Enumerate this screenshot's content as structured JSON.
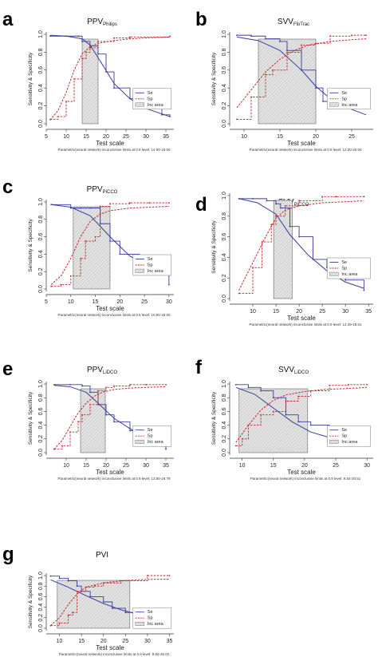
{
  "figure": {
    "type": "multi-panel ROC-style sensitivity/specificity plots"
  },
  "common": {
    "xlabel": "Test scale",
    "ylabel": "Sensitivity & Specificity",
    "legend": [
      "Se",
      "Sp",
      "Inc area"
    ],
    "colors": {
      "se": "#3a3aa0",
      "sp": "#c0282a",
      "inc_fill": "#e2e2e2"
    }
  },
  "chart_data": [
    {
      "type": "line",
      "panel": "a",
      "title_main": "PPV",
      "title_sub": "Philips",
      "xlabel": "Test scale",
      "ylabel": "Sensitivity & Specificity",
      "xlim": [
        5,
        37
      ],
      "ylim": [
        0,
        1
      ],
      "xticks": [
        5,
        10,
        15,
        20,
        25,
        30,
        35
      ],
      "yticks": [
        0.0,
        0.2,
        0.4,
        0.6,
        0.8,
        1.0
      ],
      "inconclusive_area": [
        14.0,
        18.0
      ],
      "legend": [
        "Se",
        "Sp",
        "Inc area"
      ],
      "legend_position": "right",
      "note": "Parametric(neural network) inconclusive limits at 0.9 level: 14.00-18.00",
      "series": [
        {
          "name": "Se",
          "style": "solid",
          "x": [
            6,
            10,
            14,
            16,
            18,
            22,
            26,
            30,
            34,
            36
          ],
          "y": [
            0.99,
            0.98,
            0.95,
            0.88,
            0.74,
            0.45,
            0.28,
            0.17,
            0.11,
            0.08
          ]
        },
        {
          "name": "Se",
          "style": "step",
          "x": [
            6,
            10,
            13,
            14,
            16,
            18,
            20,
            22,
            26,
            30,
            34,
            36
          ],
          "y": [
            0.98,
            0.98,
            0.98,
            0.92,
            0.87,
            0.78,
            0.58,
            0.4,
            0.28,
            0.18,
            0.1,
            0.08
          ]
        },
        {
          "name": "Sp",
          "style": "dashed",
          "x": [
            6,
            8,
            10,
            12,
            14,
            16,
            18,
            22,
            26,
            30,
            36
          ],
          "y": [
            0.04,
            0.15,
            0.35,
            0.6,
            0.78,
            0.86,
            0.9,
            0.93,
            0.95,
            0.96,
            0.97
          ]
        },
        {
          "name": "Sp",
          "style": "step",
          "x": [
            6,
            8,
            10,
            12,
            14,
            15,
            16,
            18,
            22,
            26,
            36
          ],
          "y": [
            0.05,
            0.08,
            0.25,
            0.5,
            0.73,
            0.8,
            0.85,
            0.92,
            0.96,
            0.97,
            0.98
          ]
        }
      ]
    },
    {
      "type": "line",
      "panel": "b",
      "title_main": "SVV",
      "title_sub": "FloTrac",
      "xlabel": "Test scale",
      "ylabel": "Sensitivity & Specificity",
      "xlim": [
        8,
        28
      ],
      "ylim": [
        0,
        1
      ],
      "xticks": [
        10,
        15,
        20,
        25
      ],
      "yticks": [
        0.0,
        0.2,
        0.4,
        0.6,
        0.8,
        1.0
      ],
      "inconclusive_area": [
        12.0,
        20.0
      ],
      "legend": [
        "Se",
        "Sp",
        "Inc area"
      ],
      "legend_position": "right",
      "note": "Parametric(neural network) inconclusive limits at 0.9 level: 12.00-20.00",
      "series": [
        {
          "name": "Se",
          "style": "solid",
          "x": [
            9,
            12,
            15,
            18,
            20,
            22,
            25,
            27
          ],
          "y": [
            0.97,
            0.93,
            0.82,
            0.6,
            0.42,
            0.28,
            0.16,
            0.1
          ]
        },
        {
          "name": "Se",
          "style": "step",
          "x": [
            9,
            11,
            13,
            15,
            16,
            18,
            20,
            21,
            24,
            27
          ],
          "y": [
            0.99,
            0.98,
            0.95,
            0.92,
            0.82,
            0.6,
            0.4,
            0.25,
            0.2,
            0.18
          ]
        },
        {
          "name": "Sp",
          "style": "dashed",
          "x": [
            9,
            11,
            13,
            15,
            17,
            19,
            22,
            25,
            27
          ],
          "y": [
            0.18,
            0.38,
            0.58,
            0.72,
            0.82,
            0.88,
            0.92,
            0.94,
            0.95
          ]
        },
        {
          "name": "Sp",
          "style": "step",
          "x": [
            9,
            11,
            13,
            14,
            16,
            18,
            20,
            22,
            25,
            27
          ],
          "y": [
            0.05,
            0.3,
            0.55,
            0.6,
            0.8,
            0.88,
            0.9,
            0.98,
            0.99,
            0.99
          ]
        }
      ]
    },
    {
      "type": "line",
      "panel": "c",
      "title_main": "PPV",
      "title_sub": "PiCCO",
      "xlabel": "Test scale",
      "ylabel": "Sensitivity & Specificity",
      "xlim": [
        5,
        31
      ],
      "ylim": [
        0,
        1
      ],
      "xticks": [
        5,
        10,
        15,
        20,
        25,
        30
      ],
      "yticks": [
        0.0,
        0.2,
        0.4,
        0.6,
        0.8,
        1.0
      ],
      "inconclusive_area": [
        10.5,
        18.0
      ],
      "legend": [
        "Se",
        "Sp",
        "Inc area"
      ],
      "legend_position": "right",
      "note": "Parametric(neural network) inconclusive limits at 0.9 level: 10.50-18.00",
      "series": [
        {
          "name": "Se",
          "style": "solid",
          "x": [
            6,
            10,
            14,
            18,
            22,
            26,
            30
          ],
          "y": [
            0.97,
            0.94,
            0.84,
            0.6,
            0.38,
            0.25,
            0.18
          ]
        },
        {
          "name": "Se",
          "style": "step",
          "x": [
            6,
            10,
            12,
            14,
            16,
            18,
            20,
            24,
            27,
            30
          ],
          "y": [
            0.97,
            0.93,
            0.93,
            0.93,
            0.75,
            0.55,
            0.4,
            0.3,
            0.28,
            0.05
          ]
        },
        {
          "name": "Sp",
          "style": "dashed",
          "x": [
            6,
            8,
            10,
            12,
            14,
            16,
            18,
            22,
            26,
            30
          ],
          "y": [
            0.05,
            0.15,
            0.35,
            0.6,
            0.78,
            0.86,
            0.9,
            0.93,
            0.94,
            0.95
          ]
        },
        {
          "name": "Sp",
          "style": "step",
          "x": [
            6,
            8,
            10,
            12,
            13,
            15,
            16,
            18,
            22,
            26,
            30
          ],
          "y": [
            0.03,
            0.05,
            0.15,
            0.35,
            0.55,
            0.6,
            0.95,
            0.98,
            0.99,
            0.99,
            0.99
          ]
        }
      ]
    },
    {
      "type": "line",
      "panel": "d",
      "title_main": "SVV",
      "title_sub": "PiCCO",
      "xlabel": "Test scale",
      "ylabel": "Sensitivity & Specificity",
      "xlim": [
        5,
        36
      ],
      "ylim": [
        0,
        1
      ],
      "xticks": [
        10,
        15,
        20,
        25,
        30,
        35
      ],
      "yticks": [
        0.0,
        0.2,
        0.4,
        0.6,
        0.8,
        1.0
      ],
      "inconclusive_area": [
        14.5,
        18.5
      ],
      "legend": [
        "Se",
        "Sp",
        "Inc area"
      ],
      "legend_position": "right",
      "note": "Parametric(neural network) inconclusive limits at 0.9 level: 14.49-18.51",
      "series": [
        {
          "name": "Se",
          "style": "solid",
          "x": [
            7,
            11,
            15,
            18,
            22,
            26,
            30,
            34
          ],
          "y": [
            0.97,
            0.93,
            0.82,
            0.62,
            0.42,
            0.27,
            0.16,
            0.1
          ]
        },
        {
          "name": "Se",
          "style": "step",
          "x": [
            7,
            10,
            13,
            15,
            16,
            18,
            20,
            23,
            26,
            30,
            34
          ],
          "y": [
            0.97,
            0.97,
            0.95,
            0.92,
            0.88,
            0.7,
            0.6,
            0.38,
            0.3,
            0.18,
            0.08
          ]
        },
        {
          "name": "Sp",
          "style": "dashed",
          "x": [
            7,
            10,
            13,
            15,
            17,
            20,
            25,
            30,
            34
          ],
          "y": [
            0.08,
            0.35,
            0.62,
            0.78,
            0.86,
            0.9,
            0.93,
            0.94,
            0.95
          ]
        },
        {
          "name": "Sp",
          "style": "step",
          "x": [
            7,
            10,
            12,
            14,
            15,
            17,
            20,
            25,
            28,
            34
          ],
          "y": [
            0.05,
            0.3,
            0.55,
            0.72,
            0.8,
            0.9,
            0.95,
            0.99,
            0.99,
            0.99
          ]
        }
      ]
    },
    {
      "type": "line",
      "panel": "e",
      "title_main": "PPV",
      "title_sub": "LiDCO",
      "xlabel": "Test scale",
      "ylabel": "Sensitivity & Specificity",
      "xlim": [
        5,
        37
      ],
      "ylim": [
        0,
        1
      ],
      "xticks": [
        10,
        15,
        20,
        25,
        30,
        35
      ],
      "yticks": [
        0.0,
        0.2,
        0.4,
        0.6,
        0.8,
        1.0
      ],
      "inconclusive_area": [
        13.6,
        19.8
      ],
      "legend": [
        "Se",
        "Sp",
        "Inc area"
      ],
      "legend_position": "right",
      "note": "Parametric(neural network) inconclusive limits at 0.9 level: 13.56-19.79",
      "series": [
        {
          "name": "Se",
          "style": "solid",
          "x": [
            7,
            11,
            15,
            18,
            22,
            26,
            30,
            35
          ],
          "y": [
            0.98,
            0.96,
            0.88,
            0.72,
            0.5,
            0.35,
            0.22,
            0.1
          ]
        },
        {
          "name": "Se",
          "style": "step",
          "x": [
            7,
            11,
            14,
            16,
            18,
            20,
            22,
            26,
            30,
            33,
            35
          ],
          "y": [
            0.99,
            0.99,
            0.97,
            0.88,
            0.7,
            0.55,
            0.45,
            0.32,
            0.25,
            0.15,
            0.05
          ]
        },
        {
          "name": "Sp",
          "style": "dashed",
          "x": [
            7,
            9,
            11,
            13,
            15,
            17,
            19,
            22,
            26,
            30,
            35
          ],
          "y": [
            0.05,
            0.18,
            0.38,
            0.58,
            0.72,
            0.82,
            0.88,
            0.92,
            0.94,
            0.95,
            0.96
          ]
        },
        {
          "name": "Sp",
          "style": "step",
          "x": [
            7,
            9,
            11,
            13,
            14,
            16,
            18,
            20,
            22,
            26,
            30,
            35
          ],
          "y": [
            0.05,
            0.1,
            0.3,
            0.45,
            0.55,
            0.7,
            0.9,
            0.95,
            0.97,
            0.99,
            0.99,
            0.99
          ]
        }
      ]
    },
    {
      "type": "line",
      "panel": "f",
      "title_main": "SVV",
      "title_sub": "LiDCO",
      "xlabel": "Test scale",
      "ylabel": "Sensitivity & Specificity",
      "xlim": [
        8,
        31
      ],
      "ylim": [
        0,
        1
      ],
      "xticks": [
        10,
        15,
        20,
        25,
        30
      ],
      "yticks": [
        0.0,
        0.2,
        0.4,
        0.6,
        0.8,
        1.0
      ],
      "inconclusive_area": [
        9.5,
        20.5
      ],
      "legend": [
        "Se",
        "Sp",
        "Inc area"
      ],
      "legend_position": "right",
      "note": "Parametric(neural network) inconclusive limits at 0.9 level: 9.54-20.51",
      "series": [
        {
          "name": "Se",
          "style": "solid",
          "x": [
            9,
            12,
            15,
            18,
            21,
            24,
            27,
            30
          ],
          "y": [
            0.95,
            0.85,
            0.65,
            0.45,
            0.3,
            0.22,
            0.17,
            0.13
          ]
        },
        {
          "name": "Se",
          "style": "step",
          "x": [
            9,
            11,
            13,
            15,
            17,
            19,
            21,
            24,
            27,
            30
          ],
          "y": [
            0.99,
            0.95,
            0.9,
            0.8,
            0.55,
            0.45,
            0.4,
            0.3,
            0.15,
            0.12
          ]
        },
        {
          "name": "Sp",
          "style": "dashed",
          "x": [
            9,
            11,
            13,
            15,
            17,
            20,
            23,
            26,
            30
          ],
          "y": [
            0.15,
            0.4,
            0.62,
            0.76,
            0.84,
            0.89,
            0.92,
            0.93,
            0.95
          ]
        },
        {
          "name": "Sp",
          "style": "step",
          "x": [
            9,
            10,
            11,
            13,
            15,
            17,
            19,
            21,
            24,
            27,
            30
          ],
          "y": [
            0.1,
            0.2,
            0.4,
            0.55,
            0.6,
            0.75,
            0.82,
            0.9,
            0.98,
            0.99,
            0.99
          ]
        }
      ]
    },
    {
      "type": "line",
      "panel": "g",
      "title_main": "PVI",
      "title_sub": "",
      "xlabel": "Test scale",
      "ylabel": "Sensitivity & Specificity",
      "xlim": [
        7,
        36
      ],
      "ylim": [
        0,
        1
      ],
      "xticks": [
        10,
        15,
        20,
        25,
        30,
        35
      ],
      "yticks": [
        0.0,
        0.2,
        0.4,
        0.6,
        0.8,
        1.0
      ],
      "inconclusive_area": [
        9.5,
        26.0
      ],
      "legend": [
        "Se",
        "Sp",
        "Inc area"
      ],
      "legend_position": "right",
      "note": "Parametric(neural network) inconclusive limits at 0.9 level: 9.50-26.02",
      "series": [
        {
          "name": "Se",
          "style": "solid",
          "x": [
            8,
            12,
            16,
            20,
            24,
            28,
            32,
            35
          ],
          "y": [
            0.92,
            0.78,
            0.62,
            0.47,
            0.35,
            0.26,
            0.2,
            0.17
          ]
        },
        {
          "name": "Se",
          "style": "step",
          "x": [
            8,
            10,
            12,
            14,
            15,
            17,
            20,
            22,
            25,
            28,
            32,
            35
          ],
          "y": [
            0.99,
            0.95,
            0.9,
            0.8,
            0.7,
            0.6,
            0.5,
            0.38,
            0.3,
            0.25,
            0.15,
            0.12
          ]
        },
        {
          "name": "Sp",
          "style": "dashed",
          "x": [
            8,
            10,
            12,
            14,
            16,
            20,
            24,
            28,
            32,
            35
          ],
          "y": [
            0.05,
            0.2,
            0.45,
            0.65,
            0.78,
            0.86,
            0.9,
            0.92,
            0.93,
            0.93
          ]
        },
        {
          "name": "Sp",
          "style": "step",
          "x": [
            8,
            10,
            12,
            13,
            14,
            16,
            18,
            20,
            24,
            30,
            35
          ],
          "y": [
            0.05,
            0.1,
            0.25,
            0.3,
            0.7,
            0.78,
            0.8,
            0.86,
            0.9,
            1.0,
            1.0
          ]
        }
      ]
    }
  ]
}
